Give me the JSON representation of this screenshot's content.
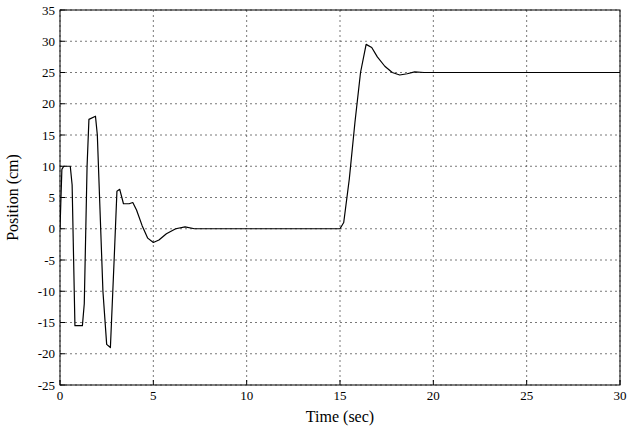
{
  "chart_data": {
    "type": "line",
    "x_label": "Time (sec)",
    "y_label": "Position (cm)",
    "x": [
      0,
      0.1,
      0.2,
      0.55,
      0.65,
      0.8,
      1.2,
      1.3,
      1.45,
      1.55,
      1.9,
      2.0,
      2.3,
      2.5,
      2.7,
      2.9,
      3.05,
      3.2,
      3.4,
      3.7,
      3.9,
      4.1,
      4.4,
      4.7,
      5.0,
      5.3,
      5.7,
      6.2,
      6.7,
      7.2,
      8,
      10,
      15,
      15.2,
      15.5,
      15.8,
      16.1,
      16.4,
      16.7,
      17,
      17.4,
      17.8,
      18.2,
      18.6,
      19,
      19.5,
      20,
      25,
      30
    ],
    "values": [
      0,
      9.5,
      10,
      10,
      7,
      -15.5,
      -15.5,
      -12,
      10,
      17.5,
      18,
      15,
      -10,
      -18.5,
      -19,
      -5,
      6,
      6.3,
      4,
      4,
      4.2,
      3,
      0.5,
      -1.5,
      -2.2,
      -1.8,
      -0.8,
      0,
      0.3,
      0,
      0,
      0,
      0,
      1,
      8,
      17,
      25,
      29.5,
      29,
      27.5,
      26,
      25,
      24.6,
      24.8,
      25.1,
      25,
      25,
      25,
      25
    ],
    "color": "#000000",
    "xlim": [
      0,
      30
    ],
    "xticks": [
      0,
      5,
      10,
      15,
      20,
      25,
      30
    ],
    "ylim": [
      -25,
      35
    ],
    "yticks": [
      -25,
      -20,
      -15,
      -10,
      -5,
      0,
      5,
      10,
      15,
      20,
      25,
      30,
      35
    ],
    "grid": true
  }
}
